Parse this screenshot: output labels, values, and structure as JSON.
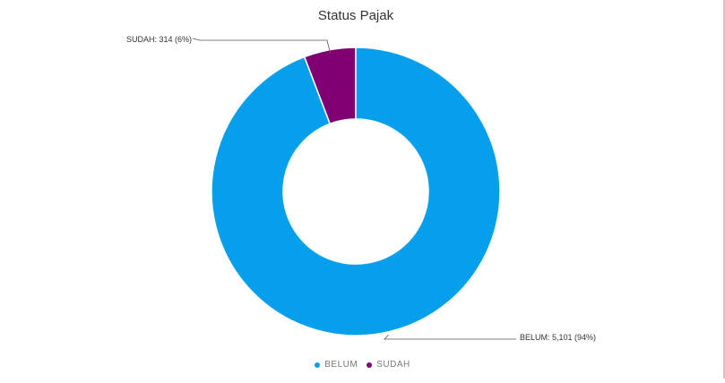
{
  "chart_data": {
    "type": "pie",
    "variant": "donut",
    "title": "Status Pajak",
    "slices": [
      {
        "name": "BELUM",
        "value": 5101,
        "percent": 94,
        "label": "BELUM: 5,101 (94%)",
        "color": "#069fec"
      },
      {
        "name": "SUDAH",
        "value": 314,
        "percent": 6,
        "label": "SUDAH: 314 (6%)",
        "color": "#800073"
      }
    ],
    "legend": {
      "position": "bottom",
      "items": [
        {
          "label": "BELUM",
          "color": "#069fec"
        },
        {
          "label": "SUDAH",
          "color": "#800073"
        }
      ]
    }
  }
}
